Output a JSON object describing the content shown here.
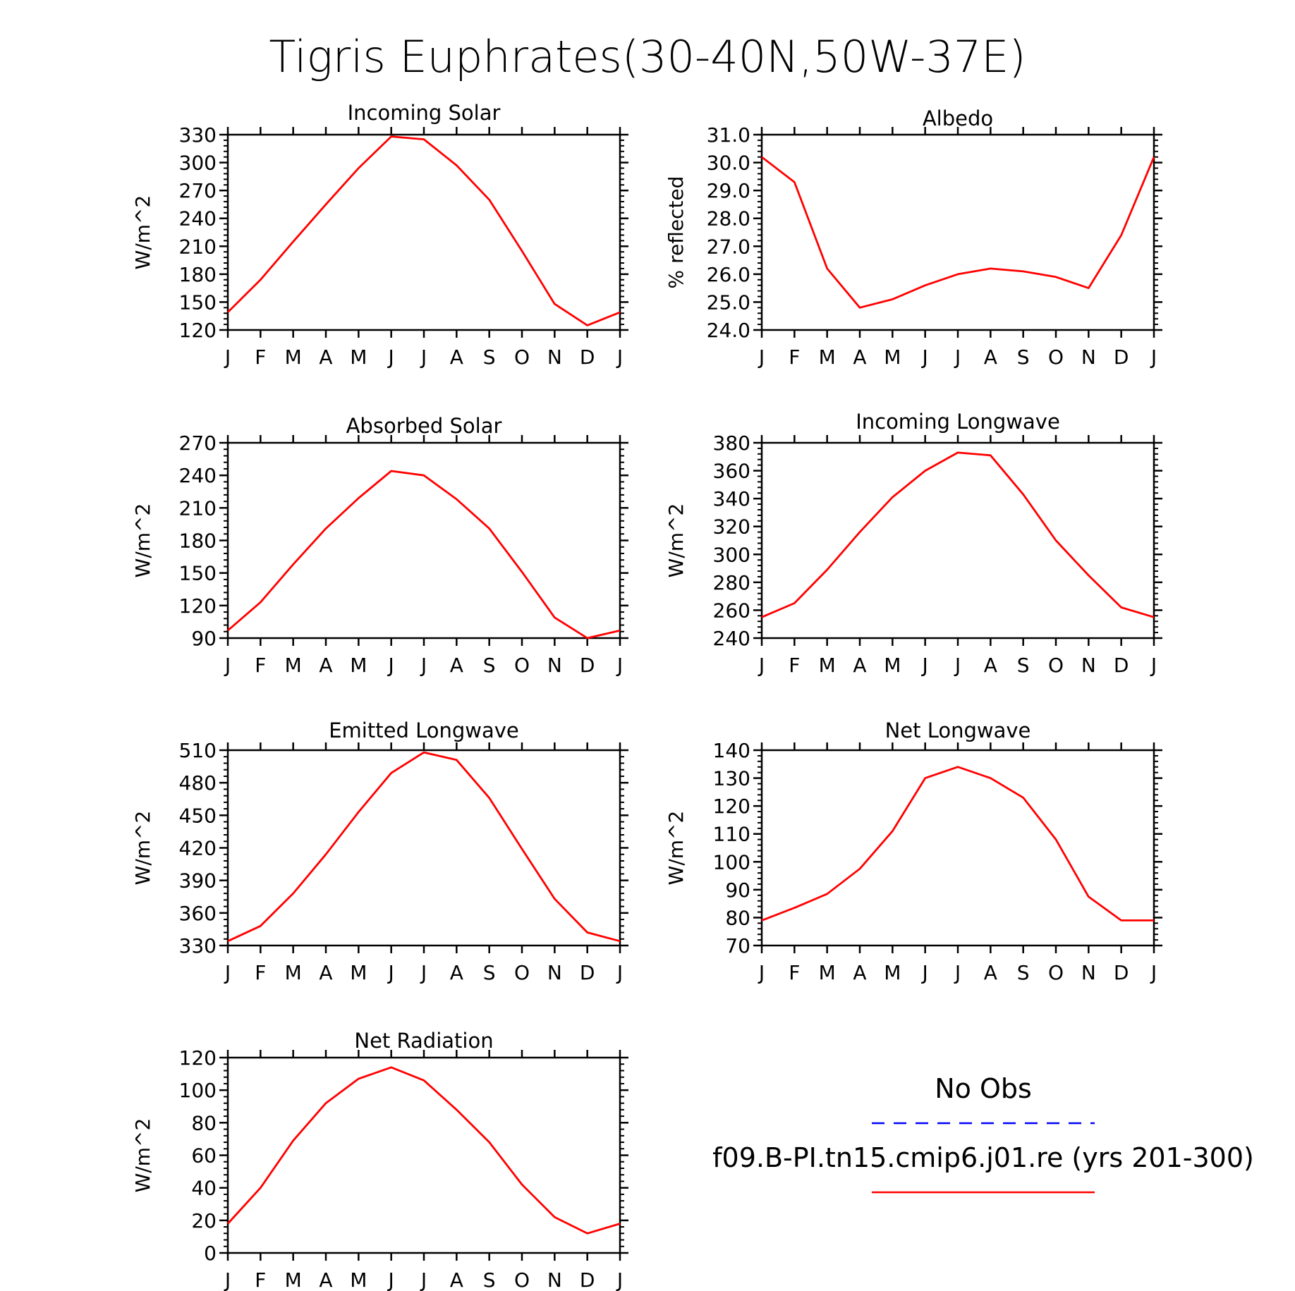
{
  "figure": {
    "title": "Tigris Euphrates(30-40N,50W-37E)",
    "colors": {
      "model": "#ff0000",
      "obs": "#0000ff",
      "axes": "#000000"
    }
  },
  "legend": {
    "obs_label": "No Obs",
    "model_label": "f09.B-PI.tn15.cmip6.j01.re (yrs 201-300)",
    "obs_style": "dashed blue line",
    "model_style": "solid red line"
  },
  "chart_data": [
    {
      "type": "line",
      "title": "Incoming Solar",
      "ylabel": "W/m^2",
      "categories": [
        "J",
        "F",
        "M",
        "A",
        "M",
        "J",
        "J",
        "A",
        "S",
        "O",
        "N",
        "D",
        "J"
      ],
      "ylim": [
        120,
        330
      ],
      "yticks": [
        120,
        150,
        180,
        210,
        240,
        270,
        300,
        330
      ],
      "ytick_labels": [
        "120",
        "150",
        "180",
        "210",
        "240",
        "270",
        "300",
        "330"
      ],
      "series": [
        {
          "values": [
            139,
            174,
            215,
            255,
            294,
            328,
            325,
            297,
            260,
            205,
            148,
            125,
            139
          ]
        }
      ]
    },
    {
      "type": "line",
      "title": "Albedo",
      "ylabel": "% reflected",
      "categories": [
        "J",
        "F",
        "M",
        "A",
        "M",
        "J",
        "J",
        "A",
        "S",
        "O",
        "N",
        "D",
        "J"
      ],
      "ylim": [
        24.0,
        31.0
      ],
      "yticks": [
        24,
        25,
        26,
        27,
        28,
        29,
        30,
        31
      ],
      "ytick_labels": [
        "24.0",
        "25.0",
        "26.0",
        "27.0",
        "28.0",
        "29.0",
        "30.0",
        "31.0"
      ],
      "series": [
        {
          "values": [
            30.2,
            29.3,
            26.2,
            24.8,
            25.1,
            25.6,
            26.0,
            26.2,
            26.1,
            25.9,
            25.5,
            27.4,
            30.2
          ]
        }
      ]
    },
    {
      "type": "line",
      "title": "Absorbed Solar",
      "ylabel": "W/m^2",
      "categories": [
        "J",
        "F",
        "M",
        "A",
        "M",
        "J",
        "J",
        "A",
        "S",
        "O",
        "N",
        "D",
        "J"
      ],
      "ylim": [
        90,
        270
      ],
      "yticks": [
        90,
        120,
        150,
        180,
        210,
        240,
        270
      ],
      "ytick_labels": [
        "90",
        "120",
        "150",
        "180",
        "210",
        "240",
        "270"
      ],
      "series": [
        {
          "values": [
            97,
            123,
            158,
            191,
            219,
            244,
            240,
            218,
            191,
            151,
            109,
            90,
            97
          ]
        }
      ]
    },
    {
      "type": "line",
      "title": "Incoming Longwave",
      "ylabel": "W/m^2",
      "categories": [
        "J",
        "F",
        "M",
        "A",
        "M",
        "J",
        "J",
        "A",
        "S",
        "O",
        "N",
        "D",
        "J"
      ],
      "ylim": [
        240,
        380
      ],
      "yticks": [
        240,
        260,
        280,
        300,
        320,
        340,
        360,
        380
      ],
      "ytick_labels": [
        "240",
        "260",
        "280",
        "300",
        "320",
        "340",
        "360",
        "380"
      ],
      "series": [
        {
          "values": [
            255,
            265,
            289,
            316,
            341,
            360,
            373,
            371,
            343,
            310,
            285,
            262,
            255
          ]
        }
      ]
    },
    {
      "type": "line",
      "title": "Emitted Longwave",
      "ylabel": "W/m^2",
      "categories": [
        "J",
        "F",
        "M",
        "A",
        "M",
        "J",
        "J",
        "A",
        "S",
        "O",
        "N",
        "D",
        "J"
      ],
      "ylim": [
        330,
        510
      ],
      "yticks": [
        330,
        360,
        390,
        420,
        450,
        480,
        510
      ],
      "ytick_labels": [
        "330",
        "360",
        "390",
        "420",
        "450",
        "480",
        "510"
      ],
      "series": [
        {
          "values": [
            334,
            348,
            378,
            414,
            453,
            489,
            508,
            501,
            466,
            419,
            373,
            342,
            334
          ]
        }
      ]
    },
    {
      "type": "line",
      "title": "Net Longwave",
      "ylabel": "W/m^2",
      "categories": [
        "J",
        "F",
        "M",
        "A",
        "M",
        "J",
        "J",
        "A",
        "S",
        "O",
        "N",
        "D",
        "J"
      ],
      "ylim": [
        70,
        140
      ],
      "yticks": [
        70,
        80,
        90,
        100,
        110,
        120,
        130,
        140
      ],
      "ytick_labels": [
        "70",
        "80",
        "90",
        "100",
        "110",
        "120",
        "130",
        "140"
      ],
      "series": [
        {
          "values": [
            79,
            83.5,
            88.5,
            97.5,
            111,
            130,
            134,
            130,
            123,
            108,
            87.5,
            79,
            79
          ]
        }
      ]
    },
    {
      "type": "line",
      "title": "Net Radiation",
      "ylabel": "W/m^2",
      "categories": [
        "J",
        "F",
        "M",
        "A",
        "M",
        "J",
        "J",
        "A",
        "S",
        "O",
        "N",
        "D",
        "J"
      ],
      "ylim": [
        0,
        120
      ],
      "yticks": [
        0,
        20,
        40,
        60,
        80,
        100,
        120
      ],
      "ytick_labels": [
        "0",
        "20",
        "40",
        "60",
        "80",
        "100",
        "120"
      ],
      "series": [
        {
          "values": [
            18,
            40,
            69,
            92,
            107,
            114,
            106,
            88,
            68,
            42,
            22,
            12,
            18
          ]
        }
      ]
    }
  ]
}
